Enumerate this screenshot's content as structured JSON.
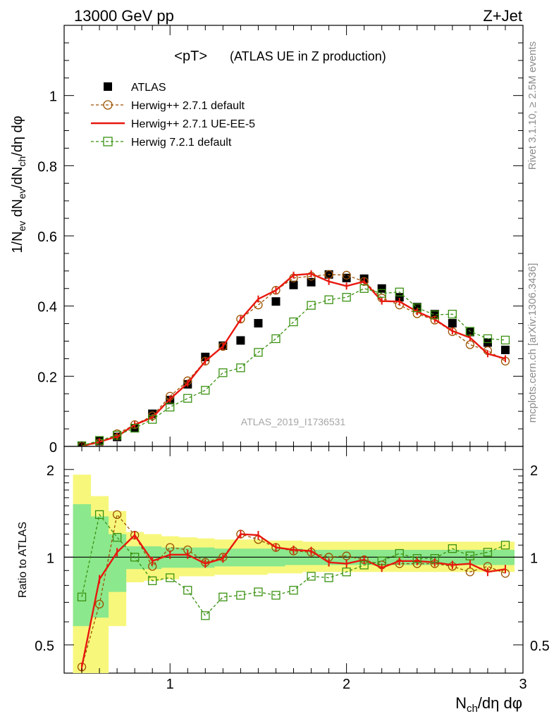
{
  "header": {
    "left": "13000 GeV pp",
    "right": "Z+Jet"
  },
  "side_labels": {
    "rivet": "Rivet 3.1.10, ≥ 2.5M events",
    "mcplots": "mcplots.cern.ch [arXiv:1306.3436]"
  },
  "chart_data": [
    {
      "type": "scatter",
      "panel": "main",
      "title": "<pT>",
      "subtitle": "(ATLAS UE in Z production)",
      "watermark": "ATLAS_2019_I1736531",
      "ylabel_parts": {
        "p1": "1/N",
        "s1": "ev",
        "p2": " dN",
        "s2": "ev",
        "p3": "/dN",
        "s3": "ch",
        "p4": "/dη dφ"
      },
      "xlim": [
        0.4,
        3.0
      ],
      "ylim": [
        0,
        1.2
      ],
      "yticks": [
        0,
        0.2,
        0.4,
        0.6,
        0.8,
        1
      ],
      "ytick_labels": [
        "0",
        "0.2",
        "0.4",
        "0.6",
        "0.8",
        "1"
      ],
      "grid": false,
      "legend_position": "top-left",
      "x": [
        0.5,
        0.6,
        0.7,
        0.8,
        0.9,
        1.0,
        1.1,
        1.2,
        1.3,
        1.4,
        1.5,
        1.6,
        1.7,
        1.8,
        1.9,
        2.0,
        2.1,
        2.2,
        2.3,
        2.4,
        2.5,
        2.6,
        2.7,
        2.8,
        2.9
      ],
      "series": [
        {
          "name": "ATLAS",
          "style": "data",
          "color": "#000000",
          "values": [
            0.002,
            0.015,
            0.027,
            0.052,
            0.093,
            0.132,
            0.177,
            0.255,
            0.287,
            0.302,
            0.351,
            0.413,
            0.46,
            0.468,
            0.49,
            0.48,
            0.478,
            0.45,
            0.425,
            0.397,
            0.377,
            0.351,
            0.326,
            0.296,
            0.275
          ]
        },
        {
          "name": "Herwig++ 2.7.1 default",
          "style": "dashed-circle",
          "color": "#9c5200",
          "values": [
            0.001,
            0.01,
            0.036,
            0.062,
            0.087,
            0.143,
            0.187,
            0.243,
            0.285,
            0.363,
            0.403,
            0.445,
            0.48,
            0.485,
            0.49,
            0.488,
            0.47,
            0.423,
            0.403,
            0.378,
            0.36,
            0.327,
            0.29,
            0.273,
            0.243
          ]
        },
        {
          "name": "Herwig++ 2.7.1 UE-EE-5",
          "style": "solid",
          "color": "#e8170e",
          "values": [
            0.001,
            0.013,
            0.028,
            0.062,
            0.082,
            0.135,
            0.18,
            0.243,
            0.285,
            0.362,
            0.42,
            0.445,
            0.488,
            0.492,
            0.47,
            0.457,
            0.47,
            0.414,
            0.413,
            0.384,
            0.362,
            0.329,
            0.31,
            0.264,
            0.25
          ]
        },
        {
          "name": "Herwig 7.2.1 default",
          "style": "dashed-square",
          "color": "#3a9112",
          "values": [
            0.002,
            0.017,
            0.032,
            0.052,
            0.077,
            0.112,
            0.137,
            0.16,
            0.21,
            0.224,
            0.268,
            0.307,
            0.355,
            0.402,
            0.418,
            0.425,
            0.45,
            0.436,
            0.44,
            0.395,
            0.375,
            0.377,
            0.328,
            0.307,
            0.303
          ]
        }
      ]
    },
    {
      "type": "line",
      "panel": "ratio",
      "ylabel": "Ratio to ATLAS",
      "xlabel_parts": {
        "p1": "N",
        "s1": "ch",
        "p2": "/dη dφ"
      },
      "xlim": [
        0.4,
        3.0
      ],
      "ylim": [
        0.4,
        2.4
      ],
      "log_y": true,
      "yticks": [
        0.5,
        1,
        2
      ],
      "ytick_labels": [
        "0.5",
        "1",
        "2"
      ],
      "xticks": [
        1,
        2,
        3
      ],
      "xtick_labels": [
        "1",
        "2",
        "3"
      ],
      "reference_line": 1,
      "x": [
        0.5,
        0.6,
        0.7,
        0.8,
        0.9,
        1.0,
        1.1,
        1.2,
        1.3,
        1.4,
        1.5,
        1.6,
        1.7,
        1.8,
        1.9,
        2.0,
        2.1,
        2.2,
        2.3,
        2.4,
        2.5,
        2.6,
        2.7,
        2.8,
        2.9
      ],
      "bands": {
        "yellow_color": "#f7f77c",
        "green_color": "#8ce88c",
        "yellow_lo": [
          0.37,
          0.39,
          0.58,
          0.82,
          0.83,
          0.84,
          0.86,
          0.86,
          0.87,
          0.87,
          0.87,
          0.88,
          0.88,
          0.89,
          0.89,
          0.89,
          0.89,
          0.89,
          0.89,
          0.89,
          0.89,
          0.89,
          0.89,
          0.89,
          0.89
        ],
        "yellow_hi": [
          1.92,
          1.62,
          1.44,
          1.22,
          1.2,
          1.18,
          1.17,
          1.16,
          1.15,
          1.15,
          1.15,
          1.14,
          1.14,
          1.13,
          1.13,
          1.13,
          1.13,
          1.13,
          1.13,
          1.13,
          1.13,
          1.13,
          1.13,
          1.13,
          1.13
        ],
        "green_lo": [
          0.58,
          0.62,
          0.76,
          0.91,
          0.91,
          0.92,
          0.92,
          0.92,
          0.93,
          0.93,
          0.93,
          0.93,
          0.94,
          0.94,
          0.94,
          0.94,
          0.94,
          0.94,
          0.94,
          0.94,
          0.94,
          0.94,
          0.94,
          0.94,
          0.94
        ],
        "green_hi": [
          1.52,
          1.38,
          1.2,
          1.09,
          1.09,
          1.08,
          1.08,
          1.08,
          1.07,
          1.07,
          1.07,
          1.07,
          1.07,
          1.06,
          1.06,
          1.06,
          1.06,
          1.06,
          1.06,
          1.06,
          1.06,
          1.06,
          1.06,
          1.06,
          1.06
        ]
      },
      "series": [
        {
          "name": "Herwig++ 2.7.1 default",
          "style": "dashed-circle",
          "color": "#9c5200",
          "values": [
            0.42,
            0.69,
            1.4,
            1.19,
            0.93,
            1.08,
            1.06,
            0.96,
            1.0,
            1.2,
            1.15,
            1.08,
            1.05,
            1.04,
            1.0,
            1.01,
            0.98,
            0.94,
            0.95,
            0.95,
            0.95,
            0.93,
            0.89,
            0.93,
            0.88
          ]
        },
        {
          "name": "Herwig++ 2.7.1 UE-EE-5",
          "style": "solid",
          "color": "#e8170e",
          "values": [
            0.42,
            0.84,
            1.04,
            1.19,
            0.97,
            1.02,
            1.02,
            0.95,
            0.99,
            1.2,
            1.19,
            1.08,
            1.06,
            1.05,
            0.96,
            0.95,
            0.98,
            0.92,
            0.97,
            0.97,
            0.96,
            0.94,
            0.95,
            0.89,
            0.91
          ]
        },
        {
          "name": "Herwig 7.2.1 default",
          "style": "dashed-square",
          "color": "#3a9112",
          "values": [
            0.73,
            1.4,
            1.17,
            1.0,
            0.83,
            0.85,
            0.77,
            0.63,
            0.73,
            0.74,
            0.76,
            0.74,
            0.77,
            0.86,
            0.85,
            0.89,
            0.94,
            0.97,
            1.03,
            0.99,
            0.99,
            1.07,
            1.01,
            1.04,
            1.1
          ]
        }
      ]
    }
  ]
}
